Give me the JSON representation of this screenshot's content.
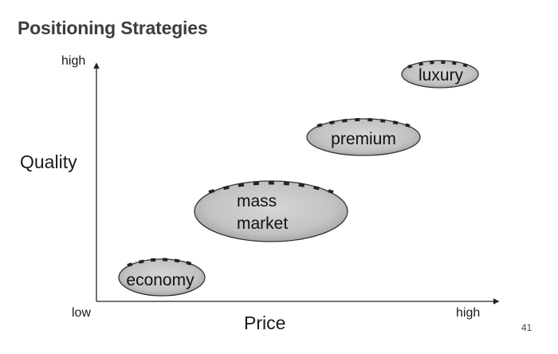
{
  "title": "Positioning Strategies",
  "axes": {
    "y_label": "Quality",
    "y_high": "high",
    "x_label": "Price",
    "x_low": "low",
    "x_high": "high"
  },
  "segments": [
    {
      "id": "economy",
      "lines": [
        "economy"
      ]
    },
    {
      "id": "mass-market",
      "lines": [
        "mass",
        "market"
      ]
    },
    {
      "id": "premium",
      "lines": [
        "premium"
      ]
    },
    {
      "id": "luxury",
      "lines": [
        "luxury"
      ]
    }
  ],
  "page_number": "41",
  "colors": {
    "ellipse_fill": "#c4c4c4",
    "ellipse_stroke": "#333333",
    "axis": "#222222",
    "title": "#3d3d3d"
  }
}
